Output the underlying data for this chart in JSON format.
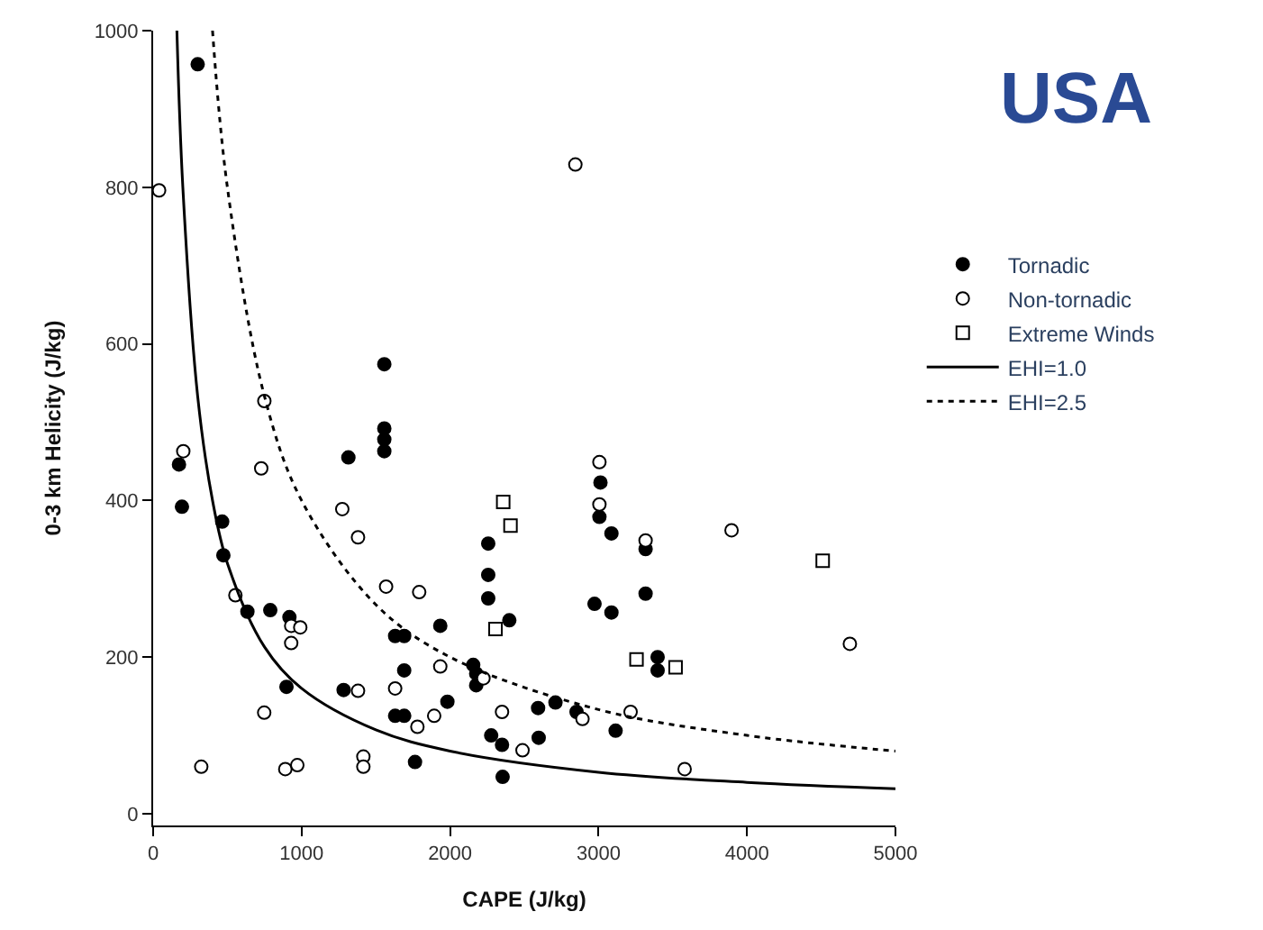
{
  "chart_data": {
    "type": "scatter",
    "title": "USA",
    "xlabel": "CAPE (J/kg)",
    "ylabel": "0-3 km Helicity (J/kg)",
    "xlim": [
      0,
      5000
    ],
    "ylim": [
      -15,
      1000
    ],
    "xticks": [
      0,
      1000,
      2000,
      3000,
      4000,
      5000
    ],
    "yticks": [
      0,
      200,
      400,
      600,
      800,
      1000
    ],
    "legend": "right",
    "series": [
      {
        "name": "Tornadic",
        "marker": "circle",
        "color": "#000000",
        "x": [
          300,
          174,
          194,
          465,
          473,
          635,
          789,
          918,
          898,
          1283,
          1315,
          1557,
          1557,
          1557,
          1557,
          1630,
          1691,
          1691,
          1630,
          1691,
          1764,
          1934,
          1982,
          2156,
          2176,
          2176,
          2257,
          2257,
          2257,
          2399,
          2277,
          2350,
          2354,
          2593,
          2597,
          3013,
          3006,
          3087,
          3317,
          3317,
          2973,
          3087,
          3398,
          3398,
          2710,
          2852,
          3115
        ],
        "values": [
          957,
          446,
          392,
          373,
          330,
          258,
          260,
          251,
          162,
          158,
          455,
          574,
          492,
          478,
          463,
          227,
          227,
          183,
          125,
          125,
          66,
          240,
          143,
          190,
          179,
          164,
          345,
          305,
          275,
          247,
          100,
          88,
          47,
          135,
          97,
          423,
          379,
          358,
          338,
          281,
          268,
          257,
          200,
          183,
          142,
          130,
          106
        ]
      },
      {
        "name": "Non-tornadic",
        "marker": "circle",
        "color": "#ffffff",
        "x": [
          40,
          203,
          728,
          749,
          1274,
          1380,
          554,
          930,
          991,
          930,
          748,
          324,
          890,
          971,
          1416,
          1416,
          1380,
          1569,
          1792,
          1630,
          1780,
          1893,
          1934,
          2225,
          2350,
          2488,
          2844,
          3006,
          3006,
          3317,
          3896,
          4693,
          2892,
          3216,
          3580
        ],
        "values": [
          796,
          463,
          441,
          527,
          389,
          353,
          279,
          240,
          238,
          218,
          129,
          60,
          57,
          62,
          73,
          60,
          157,
          290,
          283,
          160,
          111,
          125,
          188,
          173,
          130,
          81,
          829,
          449,
          395,
          349,
          362,
          217,
          121,
          130,
          57
        ]
      },
      {
        "name": "Extreme Winds",
        "marker": "square",
        "color": "#ffffff",
        "x": [
          2358,
          2407,
          2306,
          4510,
          3256,
          3519
        ],
        "values": [
          398,
          368,
          236,
          323,
          197,
          187
        ]
      },
      {
        "name": "EHI=1.0",
        "type": "line",
        "line_style": "solid",
        "color": "#000000",
        "x": [
          160,
          200,
          300,
          400,
          500,
          750,
          1000,
          1500,
          2000,
          3000,
          4000,
          5000
        ],
        "values": [
          1000,
          800,
          533,
          400,
          320,
          213,
          160,
          107,
          80,
          53,
          40,
          32
        ]
      },
      {
        "name": "EHI=2.5",
        "type": "line",
        "line_style": "dotted",
        "color": "#000000",
        "x": [
          400,
          500,
          750,
          1000,
          1500,
          2000,
          3000,
          4000,
          5000
        ],
        "values": [
          1000,
          800,
          533,
          400,
          267,
          200,
          133,
          100,
          80
        ]
      }
    ]
  }
}
